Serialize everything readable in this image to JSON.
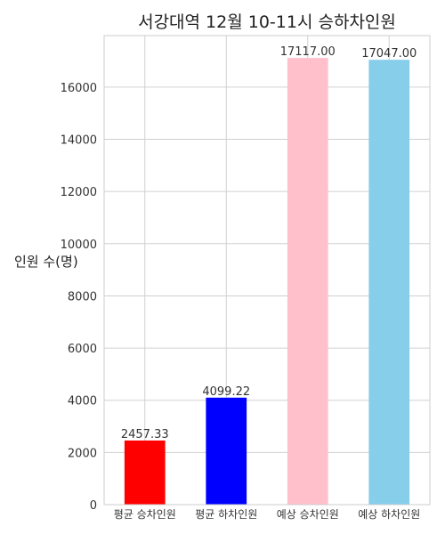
{
  "chart_data": {
    "type": "bar",
    "title": "서강대역 12월 10-11시 승하차인원",
    "xlabel": "",
    "ylabel": "인원 수(명)",
    "categories": [
      "평균 승차인원",
      "평균 하차인원",
      "예상 승차인원",
      "예상 하차인원"
    ],
    "values": [
      2457.33,
      4099.22,
      17117.0,
      17047.0
    ],
    "data_labels": [
      "2457.33",
      "4099.22",
      "17117.00",
      "17047.00"
    ],
    "colors": [
      "#ff0000",
      "#0000ff",
      "#ffc0cb",
      "#87ceeb"
    ],
    "ylim": [
      0,
      17974
    ],
    "yticks": [
      0,
      2000,
      4000,
      6000,
      8000,
      10000,
      12000,
      14000,
      16000
    ],
    "grid": true
  }
}
